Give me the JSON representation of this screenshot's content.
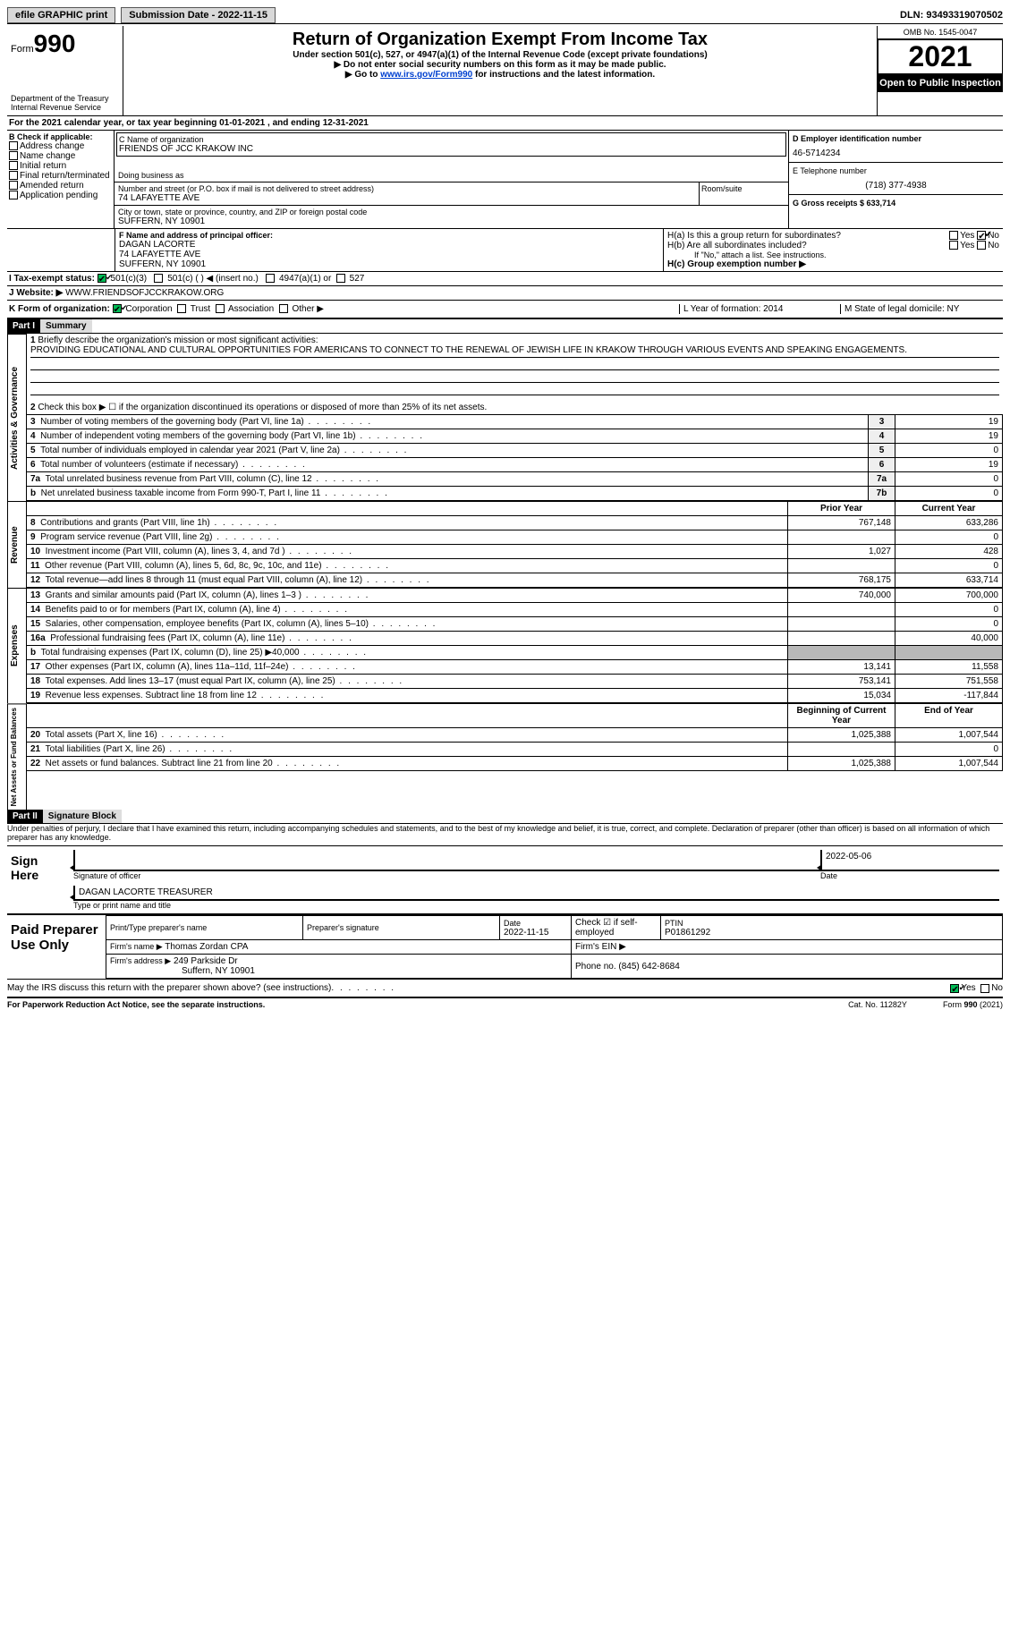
{
  "topbar": {
    "efile": "efile GRAPHIC print",
    "submission_label": "Submission Date - 2022-11-15",
    "dln_label": "DLN: 93493319070502"
  },
  "header": {
    "form_label": "Form",
    "form_num": "990",
    "dept": "Department of the Treasury",
    "irs": "Internal Revenue Service",
    "title": "Return of Organization Exempt From Income Tax",
    "sub1": "Under section 501(c), 527, or 4947(a)(1) of the Internal Revenue Code (except private foundations)",
    "sub2": "▶ Do not enter social security numbers on this form as it may be made public.",
    "sub3_pre": "▶ Go to ",
    "sub3_link": "www.irs.gov/Form990",
    "sub3_post": " for instructions and the latest information.",
    "omb": "OMB No. 1545-0047",
    "year": "2021",
    "open": "Open to Public Inspection"
  },
  "periodA": "For the 2021 calendar year, or tax year beginning 01-01-2021   , and ending 12-31-2021",
  "sectionB": {
    "label": "B Check if applicable:",
    "opts": [
      "Address change",
      "Name change",
      "Initial return",
      "Final return/terminated",
      "Amended return",
      "Application pending"
    ]
  },
  "sectionC": {
    "name_label": "C Name of organization",
    "name": "FRIENDS OF JCC KRAKOW INC",
    "dba_label": "Doing business as",
    "addr_label": "Number and street (or P.O. box if mail is not delivered to street address)",
    "room_label": "Room/suite",
    "addr": "74 LAFAYETTE AVE",
    "city_label": "City or town, state or province, country, and ZIP or foreign postal code",
    "city": "SUFFERN, NY  10901"
  },
  "sectionD": {
    "label": "D Employer identification number",
    "val": "46-5714234"
  },
  "sectionE": {
    "label": "E Telephone number",
    "val": "(718) 377-4938"
  },
  "sectionG": {
    "label": "G Gross receipts $ 633,714"
  },
  "sectionF": {
    "label": "F Name and address of principal officer:",
    "name": "DAGAN LACORTE",
    "addr1": "74 LAFAYETTE AVE",
    "addr2": "SUFFERN, NY  10901"
  },
  "sectionH": {
    "ha": "H(a)  Is this a group return for subordinates?",
    "hb": "H(b)  Are all subordinates included?",
    "hb_note": "If \"No,\" attach a list. See instructions.",
    "hc": "H(c)  Group exemption number ▶",
    "yes": "Yes",
    "no": "No"
  },
  "sectionI": {
    "label": "I   Tax-exempt status:",
    "o1": "501(c)(3)",
    "o2": "501(c) (  ) ◀ (insert no.)",
    "o3": "4947(a)(1) or",
    "o4": "527"
  },
  "sectionJ": {
    "label": "J   Website: ▶",
    "val": " WWW.FRIENDSOFJCCKRAKOW.ORG"
  },
  "sectionK": {
    "label": "K Form of organization:",
    "corp": "Corporation",
    "trust": "Trust",
    "assoc": "Association",
    "other": "Other ▶"
  },
  "sectionL": {
    "label": "L Year of formation: 2014"
  },
  "sectionM": {
    "label": "M State of legal domicile: NY"
  },
  "part1": {
    "num": "Part I",
    "title": "Summary"
  },
  "summary": {
    "line1_label": "Briefly describe the organization's mission or most significant activities:",
    "mission": "PROVIDING EDUCATIONAL AND CULTURAL OPPORTUNITIES FOR AMERICANS TO CONNECT TO THE RENEWAL OF JEWISH LIFE IN KRAKOW THROUGH VARIOUS EVENTS AND SPEAKING ENGAGEMENTS.",
    "line2": "Check this box ▶ ☐ if the organization discontinued its operations or disposed of more than 25% of its net assets.",
    "rows_gov": [
      {
        "n": "3",
        "t": "Number of voting members of the governing body (Part VI, line 1a)",
        "nc": "3",
        "v": "19"
      },
      {
        "n": "4",
        "t": "Number of independent voting members of the governing body (Part VI, line 1b)",
        "nc": "4",
        "v": "19"
      },
      {
        "n": "5",
        "t": "Total number of individuals employed in calendar year 2021 (Part V, line 2a)",
        "nc": "5",
        "v": "0"
      },
      {
        "n": "6",
        "t": "Total number of volunteers (estimate if necessary)",
        "nc": "6",
        "v": "19"
      },
      {
        "n": "7a",
        "t": "Total unrelated business revenue from Part VIII, column (C), line 12",
        "nc": "7a",
        "v": "0"
      },
      {
        "n": "b",
        "t": "Net unrelated business taxable income from Form 990-T, Part I, line 11",
        "nc": "7b",
        "v": "0"
      }
    ],
    "hdr_prior": "Prior Year",
    "hdr_curr": "Current Year",
    "rows_rev": [
      {
        "n": "8",
        "t": "Contributions and grants (Part VIII, line 1h)",
        "p": "767,148",
        "c": "633,286"
      },
      {
        "n": "9",
        "t": "Program service revenue (Part VIII, line 2g)",
        "p": "",
        "c": "0"
      },
      {
        "n": "10",
        "t": "Investment income (Part VIII, column (A), lines 3, 4, and 7d )",
        "p": "1,027",
        "c": "428"
      },
      {
        "n": "11",
        "t": "Other revenue (Part VIII, column (A), lines 5, 6d, 8c, 9c, 10c, and 11e)",
        "p": "",
        "c": "0"
      },
      {
        "n": "12",
        "t": "Total revenue—add lines 8 through 11 (must equal Part VIII, column (A), line 12)",
        "p": "768,175",
        "c": "633,714"
      }
    ],
    "rows_exp": [
      {
        "n": "13",
        "t": "Grants and similar amounts paid (Part IX, column (A), lines 1–3 )",
        "p": "740,000",
        "c": "700,000"
      },
      {
        "n": "14",
        "t": "Benefits paid to or for members (Part IX, column (A), line 4)",
        "p": "",
        "c": "0"
      },
      {
        "n": "15",
        "t": "Salaries, other compensation, employee benefits (Part IX, column (A), lines 5–10)",
        "p": "",
        "c": "0"
      },
      {
        "n": "16a",
        "t": "Professional fundraising fees (Part IX, column (A), line 11e)",
        "p": "",
        "c": "40,000"
      },
      {
        "n": "b",
        "t": "Total fundraising expenses (Part IX, column (D), line 25) ▶40,000",
        "p": "GRAY",
        "c": "GRAY"
      },
      {
        "n": "17",
        "t": "Other expenses (Part IX, column (A), lines 11a–11d, 11f–24e)",
        "p": "13,141",
        "c": "11,558"
      },
      {
        "n": "18",
        "t": "Total expenses. Add lines 13–17 (must equal Part IX, column (A), line 25)",
        "p": "753,141",
        "c": "751,558"
      },
      {
        "n": "19",
        "t": "Revenue less expenses. Subtract line 18 from line 12",
        "p": "15,034",
        "c": "-117,844"
      }
    ],
    "hdr_beg": "Beginning of Current Year",
    "hdr_end": "End of Year",
    "rows_net": [
      {
        "n": "20",
        "t": "Total assets (Part X, line 16)",
        "p": "1,025,388",
        "c": "1,007,544"
      },
      {
        "n": "21",
        "t": "Total liabilities (Part X, line 26)",
        "p": "",
        "c": "0"
      },
      {
        "n": "22",
        "t": "Net assets or fund balances. Subtract line 21 from line 20",
        "p": "1,025,388",
        "c": "1,007,544"
      }
    ],
    "vt_gov": "Activities & Governance",
    "vt_rev": "Revenue",
    "vt_exp": "Expenses",
    "vt_net": "Net Assets or Fund Balances"
  },
  "part2": {
    "num": "Part II",
    "title": "Signature Block"
  },
  "sig": {
    "perjury": "Under penalties of perjury, I declare that I have examined this return, including accompanying schedules and statements, and to the best of my knowledge and belief, it is true, correct, and complete. Declaration of preparer (other than officer) is based on all information of which preparer has any knowledge.",
    "sign_here": "Sign Here",
    "sig_officer": "Signature of officer",
    "date": "2022-05-06",
    "date_label": "Date",
    "name_title": "DAGAN LACORTE  TREASURER",
    "type_label": "Type or print name and title",
    "paid": "Paid Preparer Use Only",
    "prep_name_label": "Print/Type preparer's name",
    "prep_sig_label": "Preparer's signature",
    "prep_date_label": "Date",
    "prep_date": "2022-11-15",
    "check_label": "Check ☑ if self-employed",
    "ptin_label": "PTIN",
    "ptin": "P01861292",
    "firm_name_label": "Firm's name    ▶",
    "firm_name": "Thomas Zordan CPA",
    "firm_ein_label": "Firm's EIN ▶",
    "firm_addr_label": "Firm's address ▶",
    "firm_addr": "249 Parkside Dr",
    "firm_addr2": "Suffern, NY  10901",
    "phone_label": "Phone no. (845) 642-8684",
    "discuss": "May the IRS discuss this return with the preparer shown above? (see instructions)",
    "yes": "Yes",
    "no": "No"
  },
  "footer": {
    "pra": "For Paperwork Reduction Act Notice, see the separate instructions.",
    "cat": "Cat. No. 11282Y",
    "ver": "Form 990 (2021)"
  }
}
